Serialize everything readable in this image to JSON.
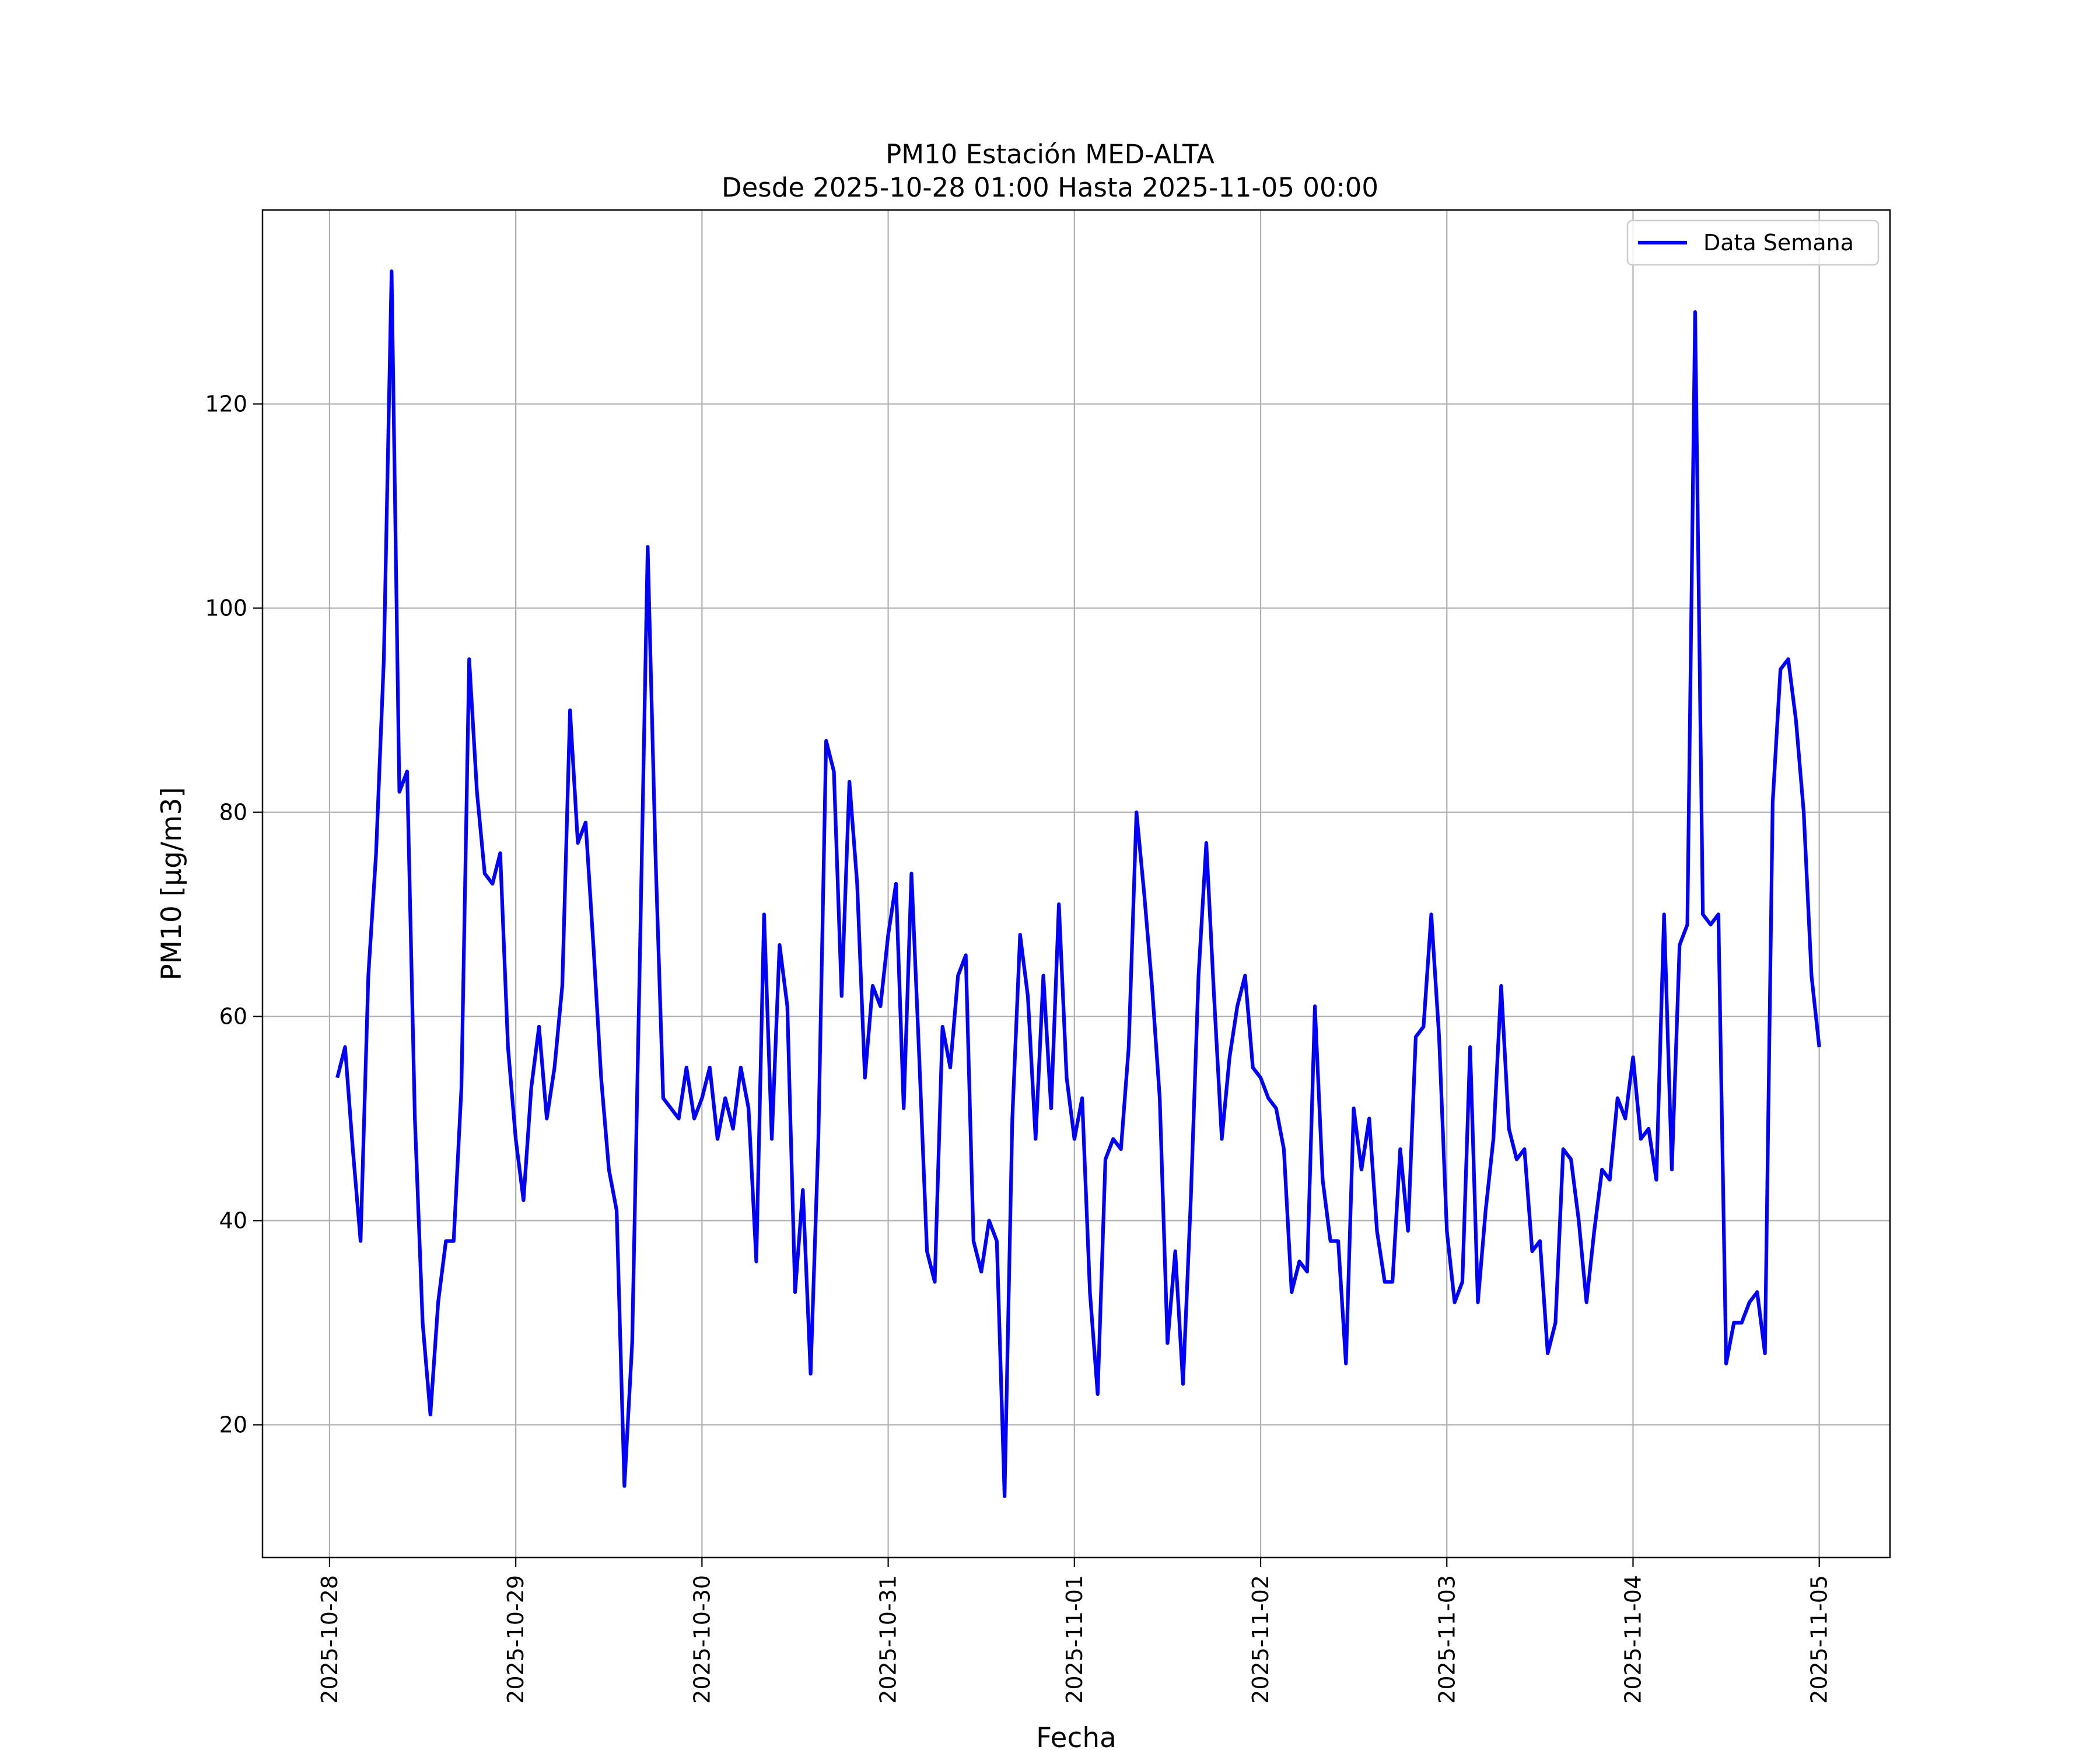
{
  "chart_data": {
    "type": "line",
    "title": [
      "PM10 Estación MED-ALTA",
      "Desde 2025-10-28 01:00 Hasta 2025-11-05 00:00"
    ],
    "xlabel": "Fecha",
    "ylabel": "PM10 [μg/m3]",
    "x_ticks": [
      "2025-10-28",
      "2025-10-29",
      "2025-10-30",
      "2025-10-31",
      "2025-11-01",
      "2025-11-02",
      "2025-11-03",
      "2025-11-04",
      "2025-11-05"
    ],
    "y_ticks": [
      20,
      40,
      60,
      80,
      100,
      120
    ],
    "ylim": [
      7,
      139
    ],
    "xlim_days": [
      -0.36,
      8.38
    ],
    "grid": true,
    "legend_position": "top-right",
    "colors": {
      "series": "#0000ff",
      "grid": "#b0b0b0"
    },
    "series": [
      {
        "name": "Data Semana",
        "step_hours": 1,
        "start": "2025-10-28 01:00",
        "values": [
          54,
          57,
          47,
          38,
          64,
          76,
          95,
          133,
          82,
          84,
          50,
          30,
          21,
          32,
          38,
          38,
          53,
          95,
          82,
          74,
          73,
          76,
          57,
          48,
          42,
          53,
          59,
          50,
          55,
          63,
          90,
          77,
          79,
          67,
          54,
          45,
          41,
          14,
          28,
          66,
          106,
          76,
          52,
          51,
          50,
          55,
          50,
          52,
          55,
          48,
          52,
          49,
          55,
          51,
          36,
          70,
          48,
          67,
          61,
          33,
          43,
          25,
          48,
          87,
          84,
          62,
          83,
          73,
          54,
          63,
          61,
          68,
          73,
          51,
          74,
          56,
          37,
          34,
          59,
          55,
          64,
          66,
          38,
          35,
          40,
          38,
          13,
          50,
          68,
          62,
          48,
          64,
          51,
          71,
          54,
          48,
          52,
          33,
          23,
          46,
          48,
          47,
          57,
          80,
          72,
          63,
          52,
          28,
          37,
          24,
          42,
          64,
          77,
          62,
          48,
          56,
          61,
          64,
          55,
          54,
          52,
          51,
          47,
          33,
          36,
          35,
          61,
          44,
          38,
          38,
          26,
          51,
          45,
          50,
          39,
          34,
          34,
          47,
          39,
          58,
          59,
          70,
          58,
          39,
          32,
          34,
          57,
          32,
          41,
          48,
          63,
          49,
          46,
          47,
          37,
          38,
          27,
          30,
          47,
          46,
          40,
          32,
          39,
          45,
          44,
          52,
          50,
          56,
          48,
          49,
          44,
          70,
          45,
          67,
          69,
          129,
          70,
          69,
          70,
          26,
          30,
          30,
          32,
          33,
          27,
          81,
          94,
          95,
          89,
          80,
          64,
          57
        ]
      }
    ]
  }
}
